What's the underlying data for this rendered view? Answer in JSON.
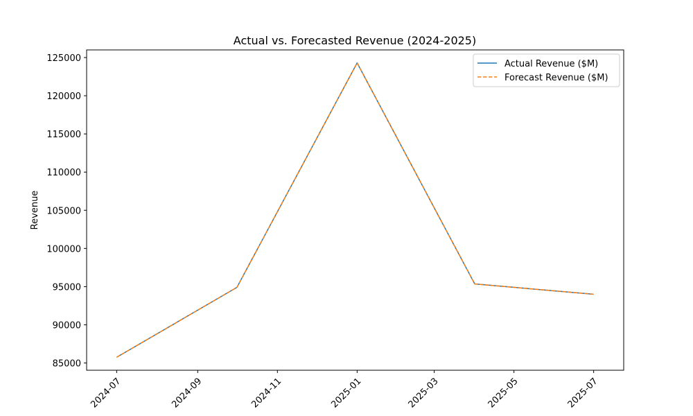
{
  "chart_data": {
    "type": "line",
    "title": "Actual vs. Forecasted Revenue (2024-2025)",
    "xlabel": "",
    "ylabel": "Revenue",
    "x": [
      "2024-07-01",
      "2024-10-01",
      "2025-01-01",
      "2025-04-01",
      "2025-07-01"
    ],
    "series": [
      {
        "name": "Actual Revenue ($M)",
        "values": [
          85750,
          94900,
          124300,
          95350,
          94000
        ],
        "color": "#1f77b4",
        "style": "solid"
      },
      {
        "name": "Forecast Revenue ($M)",
        "values": [
          85750,
          94900,
          124300,
          95350,
          94000
        ],
        "color": "#ff7f0e",
        "style": "dashed"
      }
    ],
    "xlim": [
      "2024-06-08",
      "2025-07-24"
    ],
    "ylim": [
      84050,
      126000
    ],
    "xticks": [
      "2024-07",
      "2024-09",
      "2024-11",
      "2025-01",
      "2025-03",
      "2025-05",
      "2025-07"
    ],
    "yticks": [
      85000,
      90000,
      95000,
      100000,
      105000,
      110000,
      115000,
      120000,
      125000
    ],
    "grid": false,
    "legend_position": "top-right"
  }
}
